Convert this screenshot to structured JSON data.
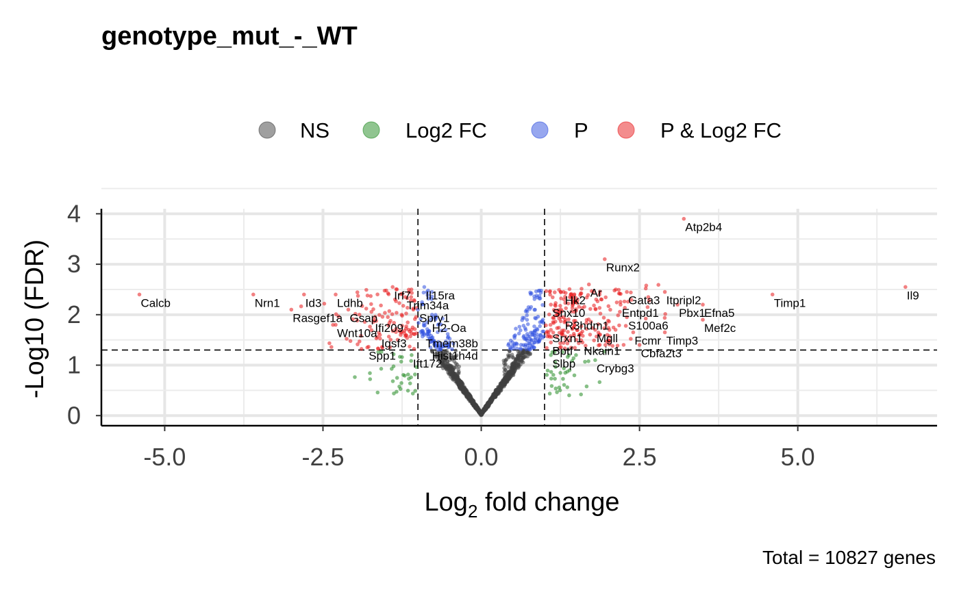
{
  "chart_data": {
    "type": "scatter",
    "title": "genotype_mut_-_WT",
    "xlabel_main": "Log",
    "xlabel_sub": "2",
    "xlabel_rest": " fold change",
    "ylabel": "-Log10 (FDR)",
    "caption": "Total = 10827 genes",
    "xlim": [
      -6.0,
      7.2
    ],
    "ylim": [
      -0.2,
      4.1
    ],
    "x_ticks": [
      -5.0,
      -2.5,
      0.0,
      2.5,
      5.0
    ],
    "x_tick_labels": [
      "-5.0",
      "-2.5",
      "0.0",
      "2.5",
      "5.0"
    ],
    "y_ticks": [
      0,
      1,
      2,
      3,
      4
    ],
    "y_tick_labels": [
      "0",
      "1",
      "2",
      "3",
      "4"
    ],
    "grid": true,
    "cutoffs": {
      "log2fc": [
        -1,
        1
      ],
      "neg_log10_fdr": 1.3
    },
    "legend": {
      "placement": "top",
      "entries": [
        {
          "label": "NS",
          "color": "#404040"
        },
        {
          "label": "Log2 FC",
          "color": "#228b22"
        },
        {
          "label": "P",
          "color": "#3050e0"
        },
        {
          "label": "P & Log2 FC",
          "color": "#e8191c"
        }
      ]
    },
    "colors": {
      "NS": "#404040",
      "FC": "#228b22",
      "P": "#3050e0",
      "PFC": "#e8191c"
    },
    "labeled_genes": [
      {
        "name": "Calcb",
        "x": -5.4,
        "y": 2.4
      },
      {
        "name": "Nrn1",
        "x": -3.6,
        "y": 2.4
      },
      {
        "name": "Id3",
        "x": -2.8,
        "y": 2.4
      },
      {
        "name": "Ldhb",
        "x": -2.3,
        "y": 2.4
      },
      {
        "name": "Rasgef1a",
        "x": -3.0,
        "y": 2.1
      },
      {
        "name": "Gsap",
        "x": -2.1,
        "y": 2.1
      },
      {
        "name": "Wnt10a",
        "x": -2.3,
        "y": 1.8
      },
      {
        "name": "Ifi209",
        "x": -1.7,
        "y": 1.9
      },
      {
        "name": "Irf7",
        "x": -1.4,
        "y": 2.55
      },
      {
        "name": "Il15ra",
        "x": -0.9,
        "y": 2.55
      },
      {
        "name": "Trim34a",
        "x": -1.2,
        "y": 2.35
      },
      {
        "name": "Spry1",
        "x": -1.0,
        "y": 2.1
      },
      {
        "name": "H2-Oa",
        "x": -0.8,
        "y": 1.9
      },
      {
        "name": "Igsf3",
        "x": -1.6,
        "y": 1.6
      },
      {
        "name": "Tmem38b",
        "x": -0.9,
        "y": 1.6
      },
      {
        "name": "Hist1h4d",
        "x": -0.8,
        "y": 1.35
      },
      {
        "name": "Spp1",
        "x": -1.8,
        "y": 1.35
      },
      {
        "name": "Ift172",
        "x": -1.1,
        "y": 1.2
      },
      {
        "name": "Atp2b4",
        "x": 3.2,
        "y": 3.9
      },
      {
        "name": "Runx2",
        "x": 1.95,
        "y": 3.1
      },
      {
        "name": "Ar",
        "x": 1.7,
        "y": 2.6
      },
      {
        "name": "Hk2",
        "x": 1.3,
        "y": 2.45
      },
      {
        "name": "Gata3",
        "x": 2.3,
        "y": 2.45
      },
      {
        "name": "Itpripl2",
        "x": 2.9,
        "y": 2.45
      },
      {
        "name": "Timp1",
        "x": 4.6,
        "y": 2.4
      },
      {
        "name": "Il9",
        "x": 6.7,
        "y": 2.55
      },
      {
        "name": "Snx10",
        "x": 1.1,
        "y": 2.2
      },
      {
        "name": "Entpd1",
        "x": 2.2,
        "y": 2.2
      },
      {
        "name": "Pbx1",
        "x": 3.1,
        "y": 2.2
      },
      {
        "name": "Efna5",
        "x": 3.5,
        "y": 2.2
      },
      {
        "name": "R3hdm1",
        "x": 1.3,
        "y": 1.95
      },
      {
        "name": "S100a6",
        "x": 2.3,
        "y": 1.95
      },
      {
        "name": "Mef2c",
        "x": 3.5,
        "y": 1.9
      },
      {
        "name": "Srxn1",
        "x": 1.1,
        "y": 1.7
      },
      {
        "name": "Mgll",
        "x": 1.8,
        "y": 1.7
      },
      {
        "name": "Fcmr",
        "x": 2.4,
        "y": 1.65
      },
      {
        "name": "Timp3",
        "x": 2.9,
        "y": 1.65
      },
      {
        "name": "Bptf",
        "x": 1.1,
        "y": 1.45
      },
      {
        "name": "Nkain1",
        "x": 1.6,
        "y": 1.45
      },
      {
        "name": "Cbfa2t3",
        "x": 2.5,
        "y": 1.4
      },
      {
        "name": "Slbp",
        "x": 1.1,
        "y": 1.2
      },
      {
        "name": "Crybg3",
        "x": 1.8,
        "y": 1.1
      }
    ]
  }
}
